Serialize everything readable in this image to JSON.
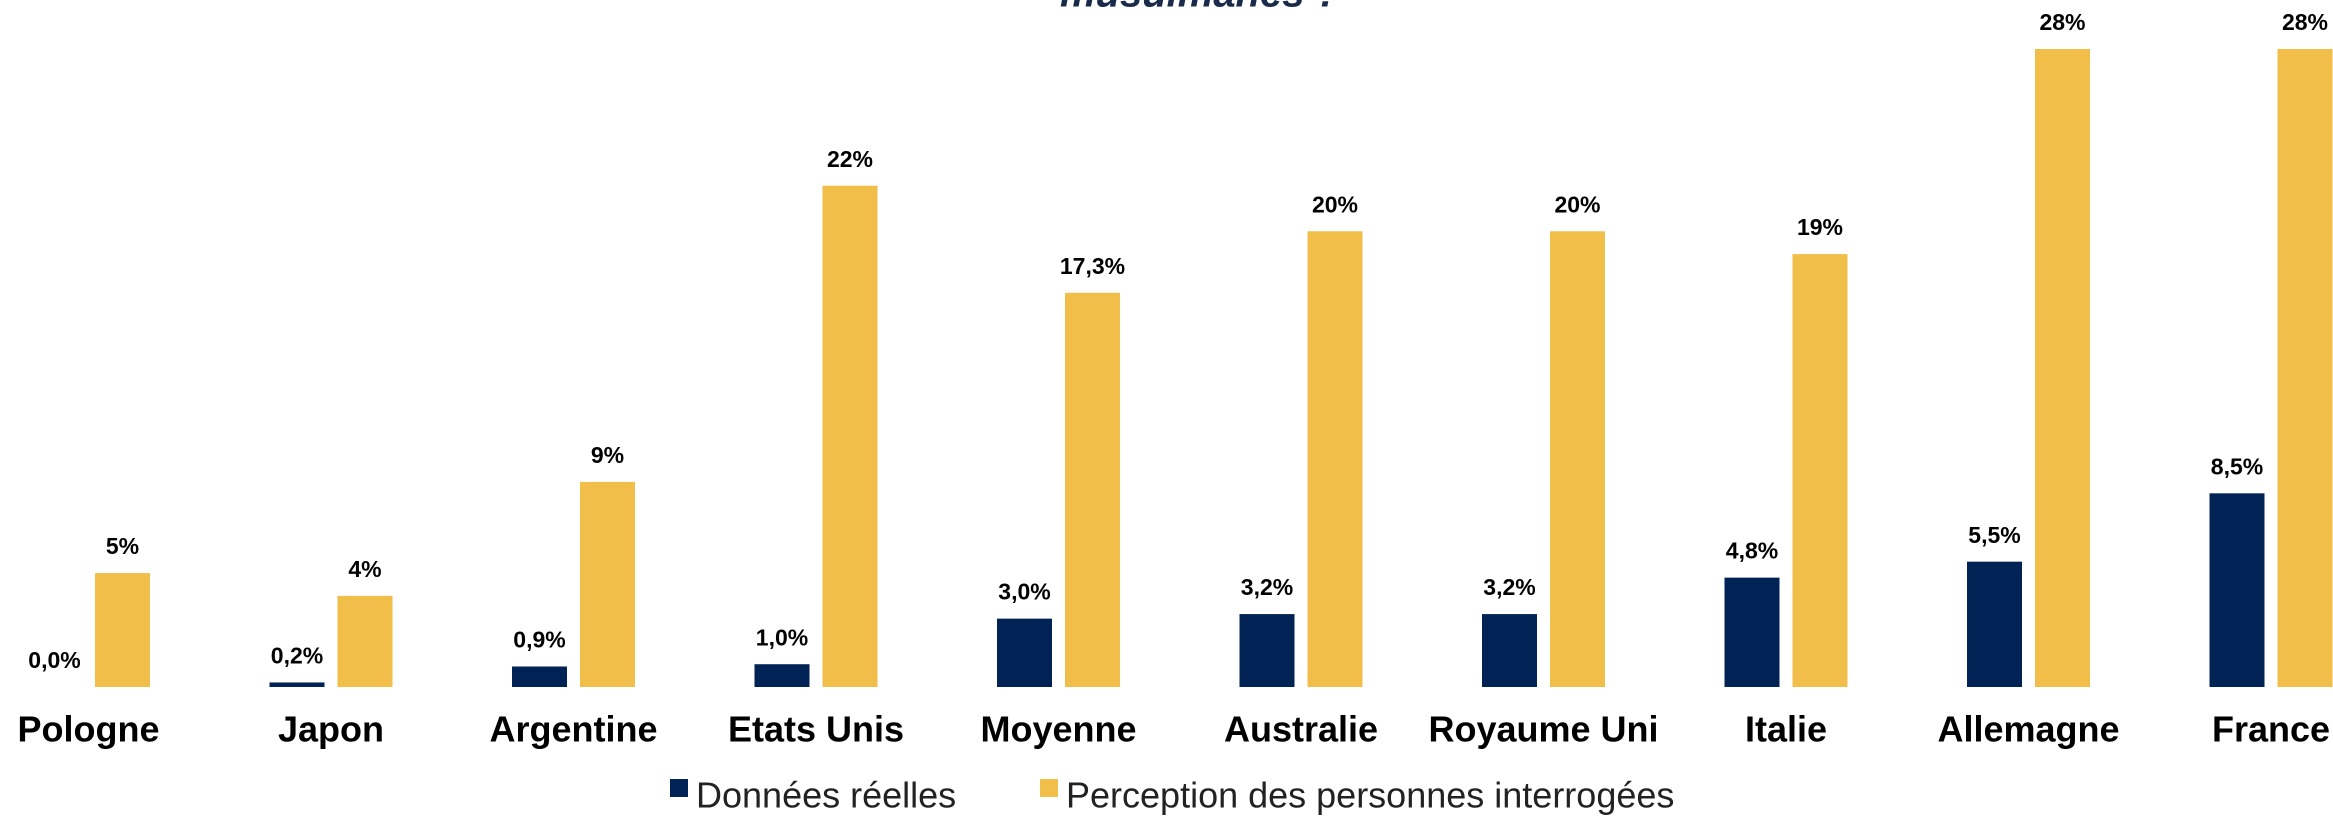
{
  "chart_data": {
    "type": "bar",
    "title": "musulmanes ?",
    "categories": [
      "Pologne",
      "Japon",
      "Argentine",
      "Etats Unis",
      "Moyenne",
      "Australie",
      "Royaume Uni",
      "Italie",
      "Allemagne",
      "France"
    ],
    "series": [
      {
        "name": "Données réelles",
        "color": "#002254",
        "values": [
          0.0,
          0.2,
          0.9,
          1.0,
          3.0,
          3.2,
          3.2,
          4.8,
          5.5,
          8.5
        ],
        "value_labels": [
          "0,0%",
          "0,2%",
          "0,9%",
          "1,0%",
          "3,0%",
          "3,2%",
          "3,2%",
          "4,8%",
          "5,5%",
          "8,5%"
        ]
      },
      {
        "name": "Perception des personnes interrogées",
        "color": "#f2be4a",
        "values": [
          5,
          4,
          9,
          22,
          17.3,
          20,
          20,
          19,
          28,
          28
        ],
        "value_labels": [
          "5%",
          "4%",
          "9%",
          "22%",
          "17,3%",
          "20%",
          "20%",
          "19%",
          "28%",
          "28%"
        ]
      }
    ]
  }
}
